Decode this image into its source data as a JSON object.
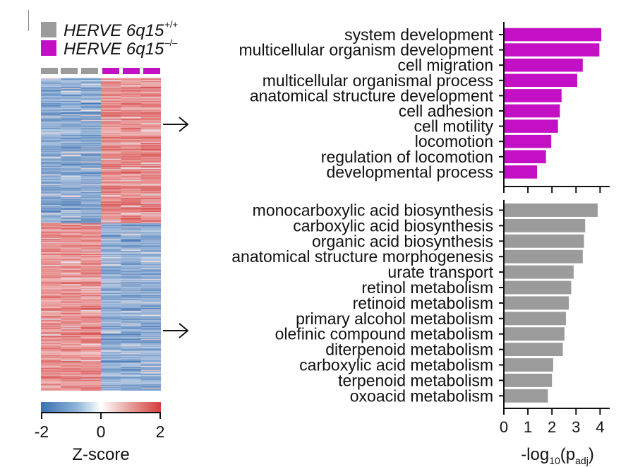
{
  "legend": {
    "wildtype": {
      "label": "HERVE 6q15",
      "superscript": "+/+",
      "color": "#9b9b9b"
    },
    "knockout": {
      "label": "HERVE 6q15",
      "superscript": "–/–",
      "color": "#c410c4"
    }
  },
  "heatmap": {
    "columns": [
      "wildtype",
      "wildtype",
      "wildtype",
      "knockout",
      "knockout",
      "knockout"
    ],
    "colorbar": {
      "min": -2,
      "max": 2,
      "ticks": [
        "-2",
        "0",
        "2"
      ],
      "title": "Z-score"
    }
  },
  "chart_data": [
    {
      "type": "bar",
      "orientation": "horizontal",
      "group": "knockout",
      "color": "#c410c4",
      "categories": [
        "system development",
        "multicellular organism development",
        "cell migration",
        "multicellular organismal process",
        "anatomical structure development",
        "cell adhesion",
        "cell motility",
        "locomotion",
        "regulation of locomotion",
        "developmental process"
      ],
      "values": [
        4.05,
        3.97,
        3.28,
        3.05,
        2.4,
        2.33,
        2.25,
        1.97,
        1.75,
        1.38
      ],
      "xlim": [
        0,
        4.4
      ]
    },
    {
      "type": "bar",
      "orientation": "horizontal",
      "group": "wildtype",
      "color": "#9b9b9b",
      "categories": [
        "monocarboxylic acid biosynthesis",
        "carboxylic acid biosynthesis",
        "organic acid biosynthesis",
        "anatomical structure morphogenesis",
        "urate transport",
        "retinol metabolism",
        "retinoid metabolism",
        "primary alcohol metabolism",
        "olefinic compound metabolism",
        "diterpenoid metabolism",
        "carboxylic acid metabolism",
        "terpenoid metabolism",
        "oxoacid metabolism"
      ],
      "values": [
        3.9,
        3.38,
        3.33,
        3.28,
        2.9,
        2.8,
        2.7,
        2.58,
        2.52,
        2.45,
        2.05,
        2.0,
        1.83
      ],
      "xlim": [
        0,
        4.4
      ],
      "xticks": [
        "0",
        "1",
        "2",
        "3",
        "4"
      ],
      "xlabel": "-log10(padj)"
    }
  ],
  "xaxis": {
    "prefix": "-log",
    "sub1": "10",
    "open": "(p",
    "sub2": "adj",
    "close": ")"
  }
}
